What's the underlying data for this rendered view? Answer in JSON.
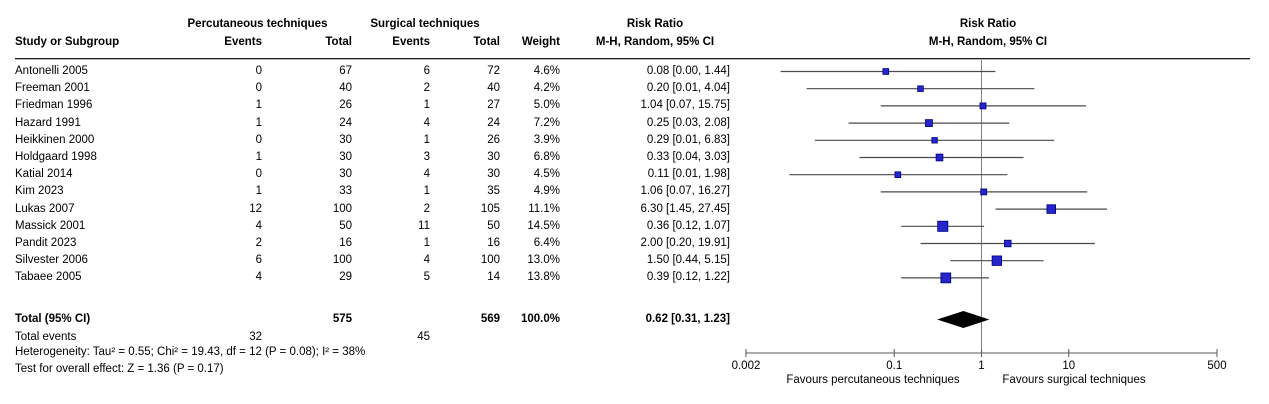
{
  "table": {
    "col_group_percutaneous": "Percutaneous techniques",
    "col_group_surgical": "Surgical techniques",
    "risk_ratio_header": "Risk Ratio",
    "method_header": "M-H, Random, 95% CI",
    "columns": {
      "study": "Study or Subgroup",
      "events": "Events",
      "total": "Total",
      "weight": "Weight"
    },
    "rows": [
      {
        "study": "Antonelli 2005",
        "e1": "0",
        "t1": "67",
        "e2": "6",
        "t2": "72",
        "weight": "4.6%",
        "rr_text": "0.08 [0.00, 1.44]"
      },
      {
        "study": "Freeman 2001",
        "e1": "0",
        "t1": "40",
        "e2": "2",
        "t2": "40",
        "weight": "4.2%",
        "rr_text": "0.20 [0.01, 4.04]"
      },
      {
        "study": "Friedman 1996",
        "e1": "1",
        "t1": "26",
        "e2": "1",
        "t2": "27",
        "weight": "5.0%",
        "rr_text": "1.04 [0.07, 15.75]"
      },
      {
        "study": "Hazard 1991",
        "e1": "1",
        "t1": "24",
        "e2": "4",
        "t2": "24",
        "weight": "7.2%",
        "rr_text": "0.25 [0.03, 2.08]"
      },
      {
        "study": "Heikkinen 2000",
        "e1": "0",
        "t1": "30",
        "e2": "1",
        "t2": "26",
        "weight": "3.9%",
        "rr_text": "0.29 [0.01, 6.83]"
      },
      {
        "study": "Holdgaard 1998",
        "e1": "1",
        "t1": "30",
        "e2": "3",
        "t2": "30",
        "weight": "6.8%",
        "rr_text": "0.33 [0.04, 3.03]"
      },
      {
        "study": "Katial 2014",
        "e1": "0",
        "t1": "30",
        "e2": "4",
        "t2": "30",
        "weight": "4.5%",
        "rr_text": "0.11 [0.01, 1.98]"
      },
      {
        "study": "Kim 2023",
        "e1": "1",
        "t1": "33",
        "e2": "1",
        "t2": "35",
        "weight": "4.9%",
        "rr_text": "1.06 [0.07, 16.27]"
      },
      {
        "study": "Lukas 2007",
        "e1": "12",
        "t1": "100",
        "e2": "2",
        "t2": "105",
        "weight": "11.1%",
        "rr_text": "6.30 [1.45, 27.45]"
      },
      {
        "study": "Massick 2001",
        "e1": "4",
        "t1": "50",
        "e2": "11",
        "t2": "50",
        "weight": "14.5%",
        "rr_text": "0.36 [0.12, 1.07]"
      },
      {
        "study": "Pandit 2023",
        "e1": "2",
        "t1": "16",
        "e2": "1",
        "t2": "16",
        "weight": "6.4%",
        "rr_text": "2.00 [0.20, 19.91]"
      },
      {
        "study": "Silvester 2006",
        "e1": "6",
        "t1": "100",
        "e2": "4",
        "t2": "100",
        "weight": "13.0%",
        "rr_text": "1.50 [0.44, 5.15]"
      },
      {
        "study": "Tabaee 2005",
        "e1": "4",
        "t1": "29",
        "e2": "5",
        "t2": "14",
        "weight": "13.8%",
        "rr_text": "0.39 [0.12, 1.22]"
      }
    ],
    "total": {
      "label": "Total (95% CI)",
      "t1": "575",
      "t2": "569",
      "weight": "100.0%",
      "rr_text": "0.62 [0.31, 1.23]"
    },
    "total_events": {
      "label": "Total events",
      "e1": "32",
      "e2": "45"
    },
    "heterogeneity": "Heterogeneity: Tau² = 0.55; Chi² = 19.43, df = 12 (P = 0.08); I² = 38%",
    "overall_effect": "Test for overall effect: Z = 1.36 (P = 0.17)"
  },
  "chart_data": {
    "type": "forest",
    "title": "Risk Ratio",
    "method": "M-H, Random, 95% CI",
    "scale": "log",
    "axis": {
      "min": 0.002,
      "max": 500,
      "ticks": [
        0.002,
        0.1,
        1,
        10,
        500
      ],
      "tick_labels": [
        "0.002",
        "0.1",
        "1",
        "10",
        "500"
      ]
    },
    "xlabel_left": "Favours percutaneous techniques",
    "xlabel_right": "Favours surgical techniques",
    "studies": [
      {
        "name": "Antonelli 2005",
        "rr": 0.08,
        "low": 0.005,
        "high": 1.44,
        "weight": 4.6
      },
      {
        "name": "Freeman 2001",
        "rr": 0.2,
        "low": 0.0099,
        "high": 4.04,
        "weight": 4.2
      },
      {
        "name": "Friedman 1996",
        "rr": 1.04,
        "low": 0.07,
        "high": 15.75,
        "weight": 5.0
      },
      {
        "name": "Hazard 1991",
        "rr": 0.25,
        "low": 0.03,
        "high": 2.08,
        "weight": 7.2
      },
      {
        "name": "Heikkinen 2000",
        "rr": 0.29,
        "low": 0.0123,
        "high": 6.83,
        "weight": 3.9
      },
      {
        "name": "Holdgaard 1998",
        "rr": 0.33,
        "low": 0.04,
        "high": 3.03,
        "weight": 6.8
      },
      {
        "name": "Katial 2014",
        "rr": 0.11,
        "low": 0.0063,
        "high": 1.98,
        "weight": 4.5
      },
      {
        "name": "Kim 2023",
        "rr": 1.06,
        "low": 0.07,
        "high": 16.27,
        "weight": 4.9
      },
      {
        "name": "Lukas 2007",
        "rr": 6.3,
        "low": 1.45,
        "high": 27.45,
        "weight": 11.1
      },
      {
        "name": "Massick 2001",
        "rr": 0.36,
        "low": 0.12,
        "high": 1.07,
        "weight": 14.5
      },
      {
        "name": "Pandit 2023",
        "rr": 2.0,
        "low": 0.2,
        "high": 19.91,
        "weight": 6.4
      },
      {
        "name": "Silvester 2006",
        "rr": 1.5,
        "low": 0.44,
        "high": 5.15,
        "weight": 13.0
      },
      {
        "name": "Tabaee 2005",
        "rr": 0.39,
        "low": 0.12,
        "high": 1.22,
        "weight": 13.8
      }
    ],
    "total": {
      "rr": 0.62,
      "low": 0.31,
      "high": 1.23
    },
    "colors": {
      "marker_fill": "#2525cc",
      "marker_border": "#000080",
      "ci_line": "#4a4a4a",
      "axis_line": "#595959",
      "guide_line": "#808080",
      "diamond": "#000000"
    }
  }
}
